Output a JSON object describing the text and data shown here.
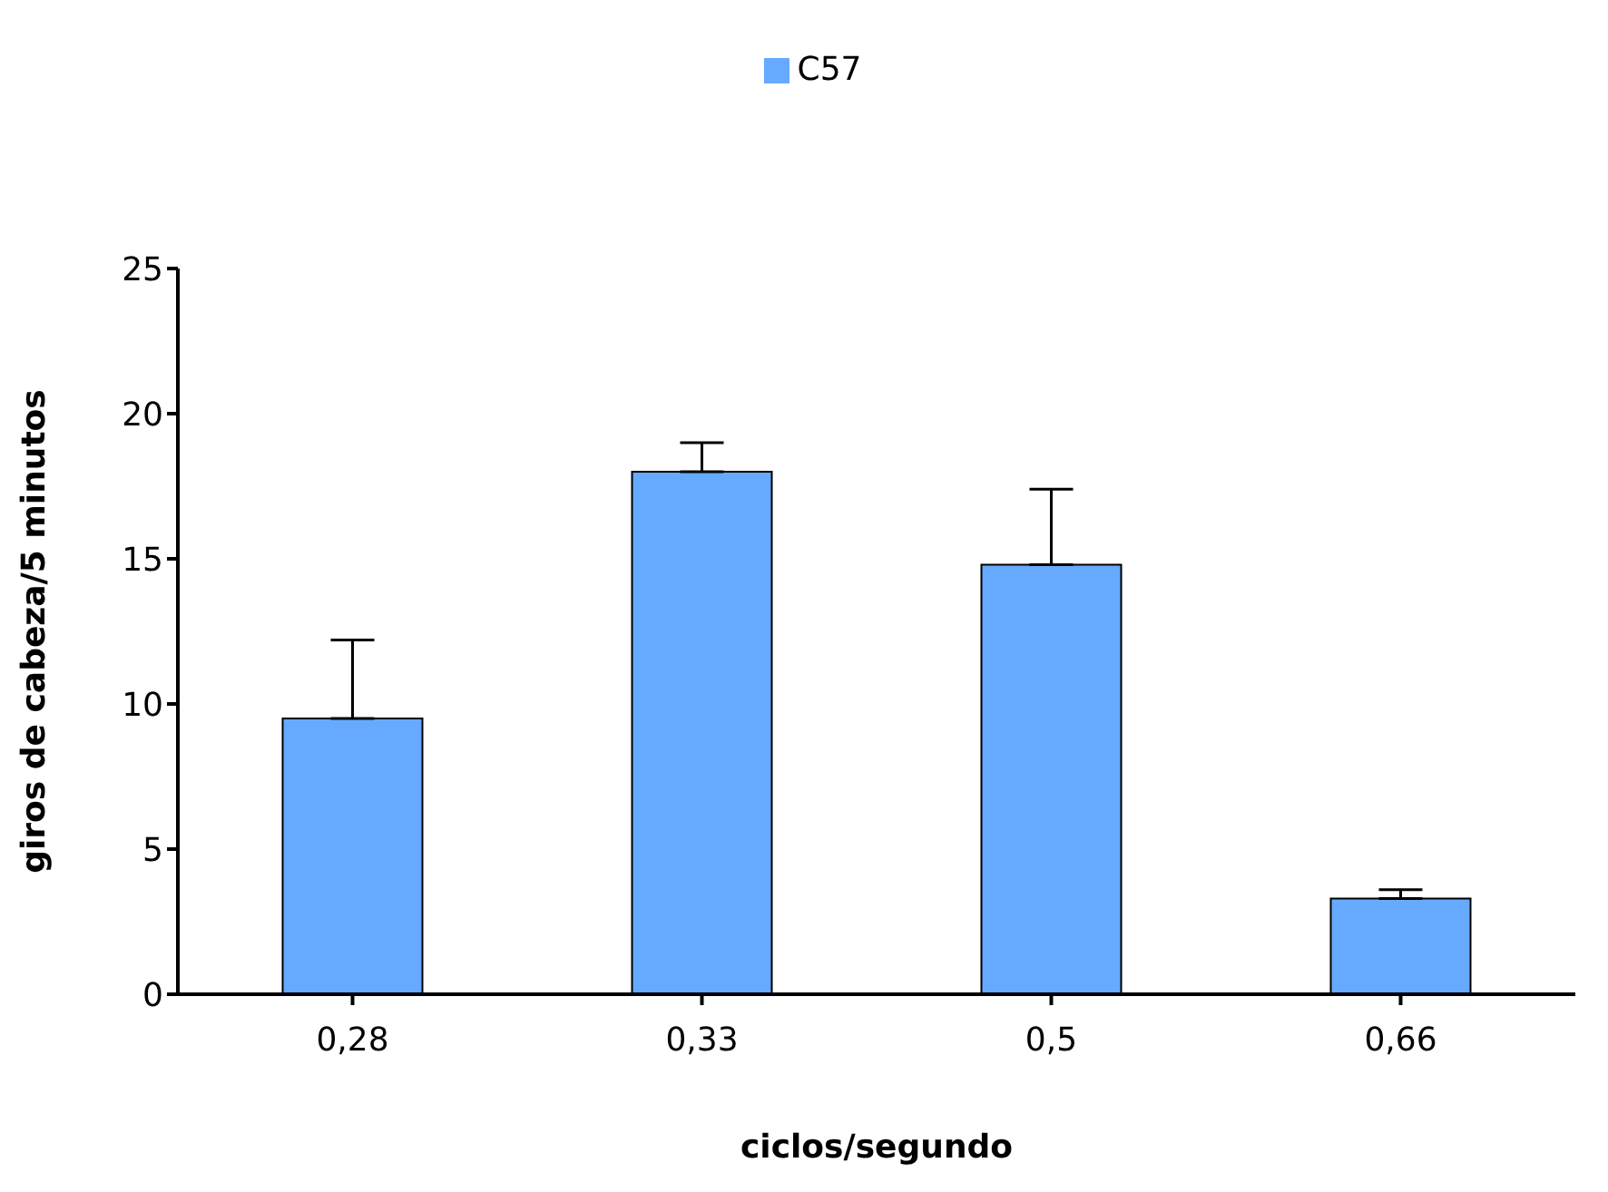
{
  "chart_data": {
    "type": "bar",
    "xlabel": "ciclos/segundo",
    "ylabel": "giros de cabeza/5 minutos",
    "categories": [
      "0,28",
      "0,33",
      "0,5",
      "0,66"
    ],
    "series": [
      {
        "name": "C57",
        "color": "#66aaff",
        "values": [
          9.5,
          18.0,
          14.8,
          3.3
        ],
        "errors": [
          [
            9.5,
            12.2
          ],
          [
            18.0,
            19.0
          ],
          [
            14.8,
            17.4
          ],
          [
            3.3,
            3.6
          ]
        ]
      }
    ],
    "ylim": [
      0,
      25
    ],
    "yticks": [
      0,
      5,
      10,
      15,
      20,
      25
    ],
    "grid": false,
    "legend": "top"
  }
}
